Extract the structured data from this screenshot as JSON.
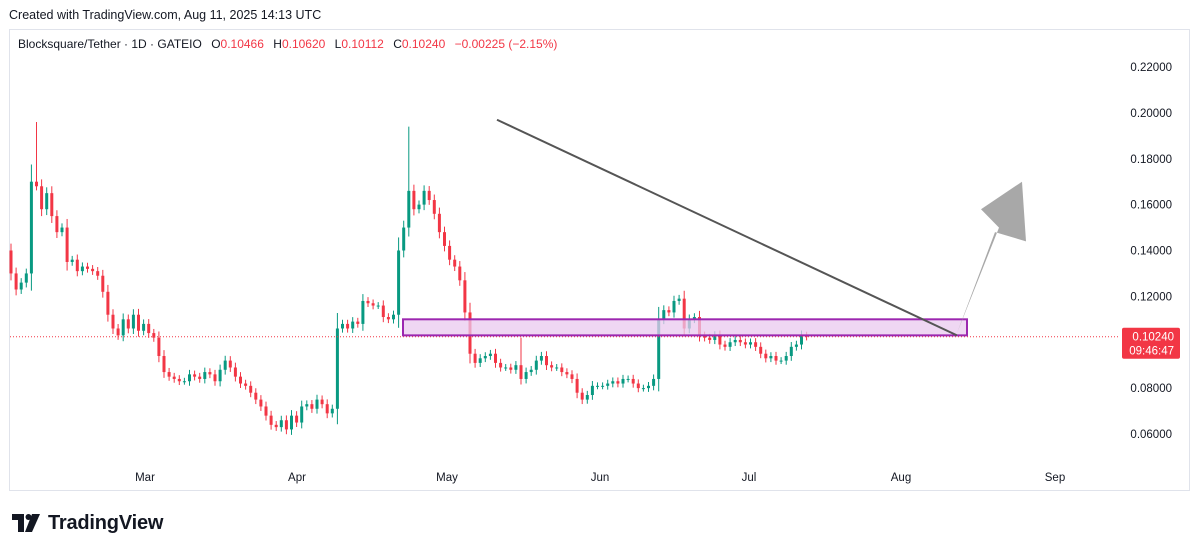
{
  "header": {
    "created_text": "Created with TradingView.com, Aug 11, 2025 14:13 UTC"
  },
  "legend": {
    "symbol": "Blocksquare/Tether · 1D · GATEIO",
    "open_label": "O",
    "open": "0.10466",
    "high_label": "H",
    "high": "0.10620",
    "low_label": "L",
    "low": "0.10112",
    "close_label": "C",
    "close": "0.10240",
    "change": "−0.00225 (−2.15%)"
  },
  "logo": {
    "text": "TradingView"
  },
  "colors": {
    "up": "#089981",
    "down": "#f23645",
    "zone_border": "#9c27b0",
    "zone_fill": "#e9c9ef",
    "trendline": "#555555",
    "arrow": "#9e9e9e",
    "price_tag": "#f23645"
  },
  "chart_data": {
    "type": "candlestick",
    "y_axis": {
      "range": [
        0.04,
        0.23
      ],
      "ticks": [
        "0.22000",
        "0.20000",
        "0.18000",
        "0.16000",
        "0.14000",
        "0.12000",
        "0.08000",
        "0.06000"
      ]
    },
    "x_axis": {
      "ticks": [
        "Mar",
        "Apr",
        "May",
        "Jun",
        "Jul",
        "Aug",
        "Sep"
      ]
    },
    "last_price": {
      "value": "0.10240",
      "countdown": "09:46:47"
    },
    "closes": [
      0.13,
      0.123,
      0.126,
      0.13,
      0.17,
      0.168,
      0.158,
      0.165,
      0.155,
      0.148,
      0.15,
      0.135,
      0.136,
      0.131,
      0.133,
      0.132,
      0.131,
      0.129,
      0.122,
      0.112,
      0.106,
      0.103,
      0.11,
      0.106,
      0.112,
      0.105,
      0.108,
      0.104,
      0.102,
      0.094,
      0.087,
      0.085,
      0.084,
      0.083,
      0.083,
      0.086,
      0.085,
      0.084,
      0.087,
      0.086,
      0.083,
      0.088,
      0.092,
      0.089,
      0.085,
      0.082,
      0.081,
      0.078,
      0.075,
      0.072,
      0.068,
      0.064,
      0.063,
      0.066,
      0.062,
      0.068,
      0.065,
      0.072,
      0.073,
      0.071,
      0.075,
      0.073,
      0.069,
      0.071,
      0.106,
      0.108,
      0.106,
      0.109,
      0.108,
      0.118,
      0.117,
      0.116,
      0.116,
      0.111,
      0.11,
      0.112,
      0.14,
      0.15,
      0.166,
      0.158,
      0.16,
      0.166,
      0.162,
      0.156,
      0.148,
      0.142,
      0.136,
      0.133,
      0.127,
      0.113,
      0.095,
      0.091,
      0.093,
      0.094,
      0.095,
      0.091,
      0.089,
      0.089,
      0.088,
      0.09,
      0.084,
      0.087,
      0.088,
      0.092,
      0.094,
      0.09,
      0.089,
      0.089,
      0.087,
      0.086,
      0.084,
      0.078,
      0.075,
      0.077,
      0.081,
      0.081,
      0.081,
      0.082,
      0.083,
      0.082,
      0.084,
      0.084,
      0.082,
      0.08,
      0.08,
      0.081,
      0.084,
      0.11,
      0.114,
      0.113,
      0.118,
      0.119,
      0.106,
      0.11,
      0.111,
      0.103,
      0.102,
      0.101,
      0.103,
      0.099,
      0.098,
      0.1,
      0.101,
      0.1,
      0.099,
      0.1,
      0.098,
      0.095,
      0.093,
      0.094,
      0.092,
      0.092,
      0.094,
      0.098,
      0.099,
      0.103,
      0.1024
    ]
  }
}
